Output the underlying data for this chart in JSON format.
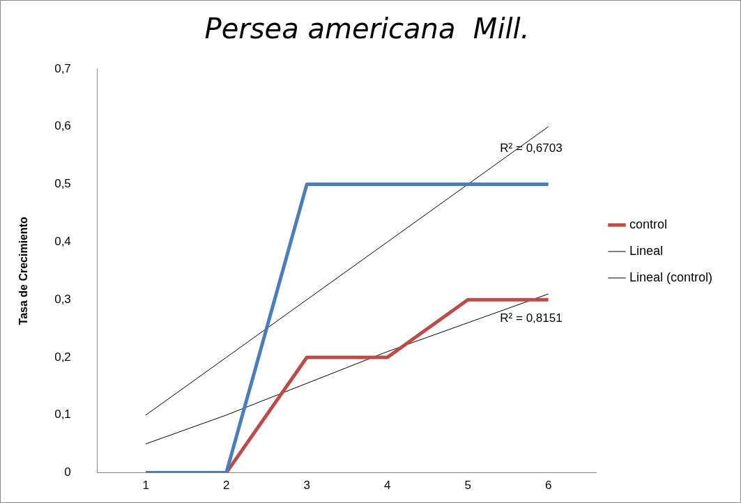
{
  "chart_data": {
    "type": "line",
    "title": "Persea americana  Mill.",
    "ylabel": "Tasa de Crecimiento",
    "x": [
      1,
      2,
      3,
      4,
      5,
      6
    ],
    "series": [
      {
        "color": "#4a7ebb",
        "values": [
          0,
          0,
          0.5,
          0.5,
          0.5,
          0.5
        ]
      },
      {
        "name": "control",
        "color": "#be4b48",
        "values": [
          0,
          0,
          0.2,
          0.2,
          0.3,
          0.3
        ]
      },
      {
        "name": "Lineal",
        "type": "line",
        "color": "#000000",
        "values": [
          0.1,
          0.2,
          0.3,
          0.4,
          0.5,
          0.6
        ]
      },
      {
        "name": "Lineal (control)",
        "type": "line",
        "color": "#000000",
        "values": [
          0.05,
          0.1,
          0.155,
          0.21,
          0.26,
          0.31
        ]
      }
    ],
    "xlim": [
      0.4,
      6.6
    ],
    "xticks": [
      1,
      2,
      3,
      4,
      5,
      6
    ],
    "ylim": [
      0,
      0.7
    ],
    "yticks": [
      0,
      {
        "value": 0.1,
        "label": "0,1"
      },
      {
        "value": 0.2,
        "label": "0,2"
      },
      {
        "value": 0.3,
        "label": "0,3"
      },
      {
        "value": 0.4,
        "label": "0,4"
      },
      {
        "value": 0.5,
        "label": "0,5"
      },
      {
        "value": 0.6,
        "label": "0,6"
      },
      {
        "value": 0.7,
        "label": "0,7"
      }
    ],
    "annotations": [
      "R² = 0,6703",
      "R² = 0,8151"
    ],
    "grid": false,
    "legend": "right",
    "marker": "none",
    "line_style": "solid"
  }
}
